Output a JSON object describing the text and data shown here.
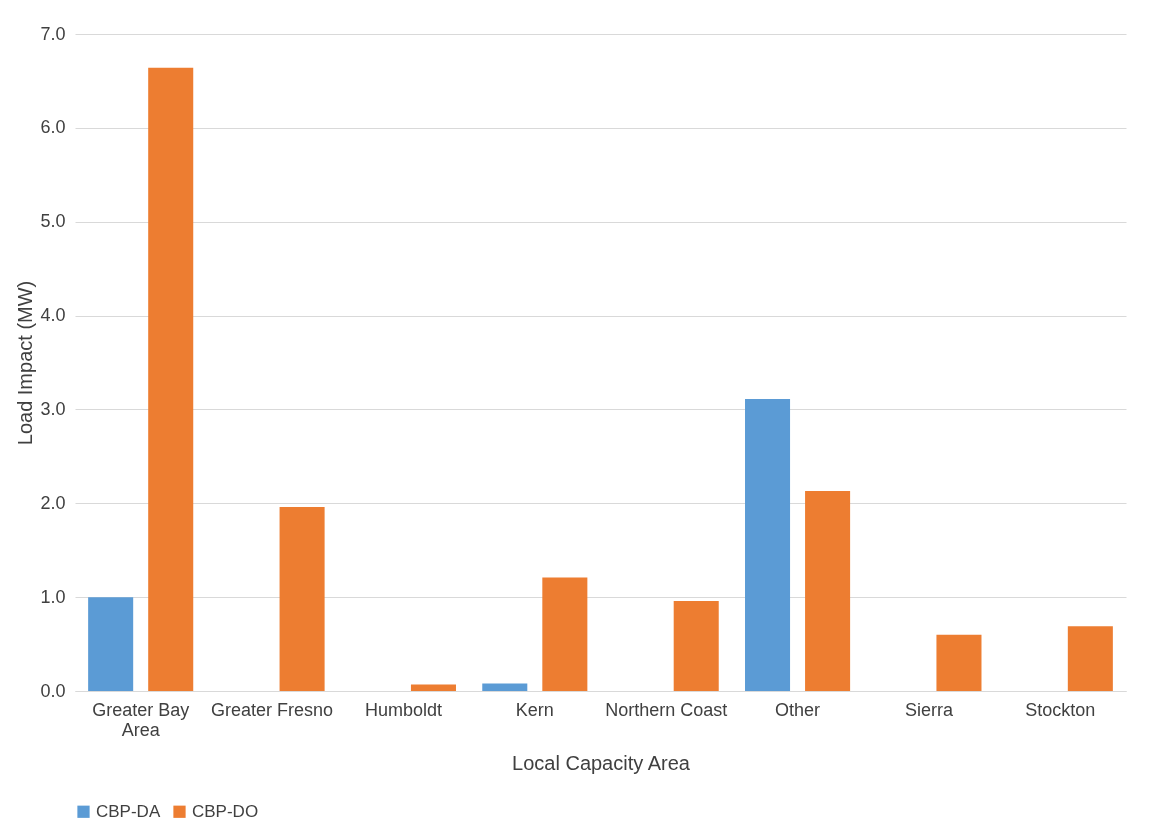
{
  "chart_data": {
    "type": "bar",
    "xlabel": "Local Capacity Area",
    "ylabel": "Load Impact (MW)",
    "categories": [
      "Greater Bay Area",
      "Greater Fresno",
      "Humboldt",
      "Kern",
      "Northern Coast",
      "Other",
      "Sierra",
      "Stockton"
    ],
    "series": [
      {
        "name": "CBP-DA",
        "color": "#5b9bd5",
        "values": [
          1.0,
          null,
          null,
          0.08,
          null,
          3.11,
          null,
          null
        ]
      },
      {
        "name": "CBP-DO",
        "color": "#ed7d31",
        "values": [
          6.64,
          1.96,
          0.07,
          1.21,
          0.96,
          2.13,
          0.6,
          0.69
        ]
      }
    ],
    "ylim": [
      0,
      7.0
    ],
    "yticks": [
      {
        "value": 0,
        "label": "0.0"
      },
      {
        "value": 1,
        "label": "1.0"
      },
      {
        "value": 2,
        "label": "2.0"
      },
      {
        "value": 3,
        "label": "3.0"
      },
      {
        "value": 4,
        "label": "4.0"
      },
      {
        "value": 5,
        "label": "5.0"
      },
      {
        "value": 6,
        "label": "6.0"
      },
      {
        "value": 7,
        "label": "7.0"
      }
    ],
    "grid": "y",
    "legend": "bottom"
  }
}
